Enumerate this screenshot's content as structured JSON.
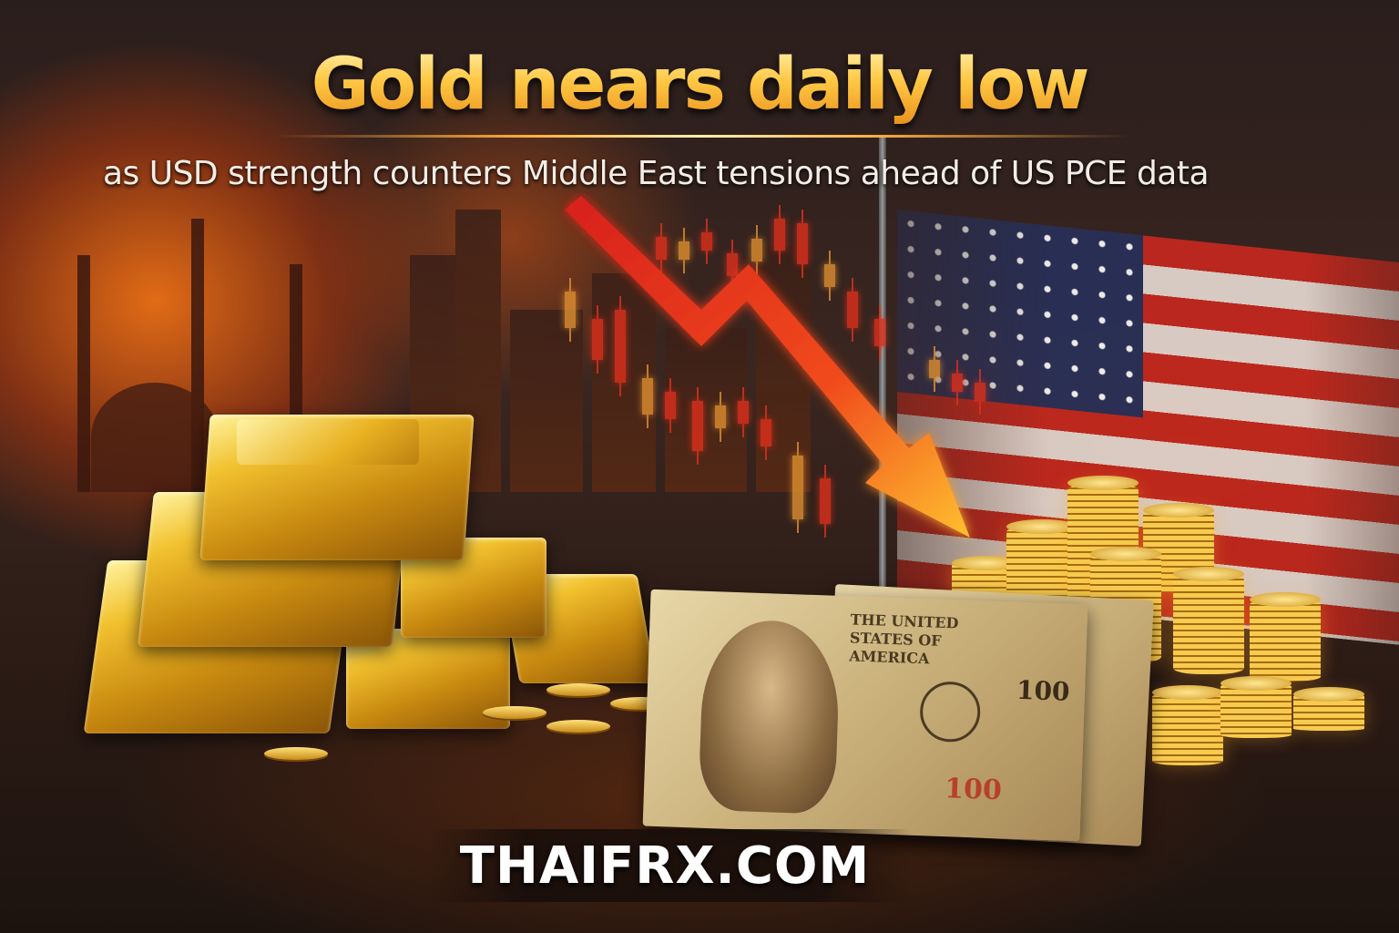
{
  "headline": {
    "title": "Gold nears daily low",
    "subtitle": "as USD strength counters Middle East tensions ahead of US PCE data"
  },
  "footer": {
    "website": "THAIFRX.COM"
  },
  "banknote": {
    "text_top": "THE UNITED STATES OF AMERICA",
    "denomination": "100"
  },
  "colors": {
    "title_gold": "#ffc844",
    "arrow_red": "#e8321c",
    "fire_orange": "#ff7814",
    "flag_red": "#c8281e",
    "flag_blue": "#27305a"
  },
  "icons": [
    "down-trend-arrow",
    "candlestick-chart",
    "us-flag",
    "gold-bars",
    "gold-coins",
    "dollar-banknote",
    "city-skyline"
  ]
}
